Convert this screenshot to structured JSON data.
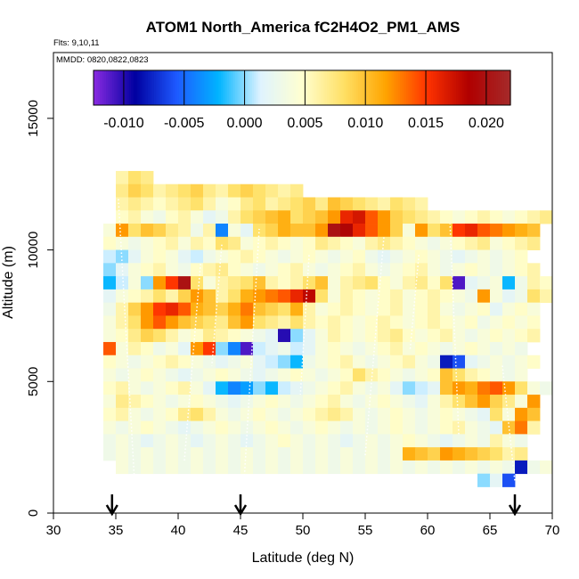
{
  "chart_data": {
    "type": "heatmap",
    "title": "ATOM1 North_America fC2H4O2_PM1_AMS",
    "flights_label": "Flts: 9,10,11",
    "mmdd_label": "MMDD: 0820,0822,0823",
    "xlabel": "Latitude (deg N)",
    "ylabel": "Altitude (m)",
    "xlim": [
      30,
      70
    ],
    "ylim": [
      0,
      17500
    ],
    "x_ticks": [
      30,
      35,
      40,
      45,
      50,
      55,
      60,
      65,
      70
    ],
    "x_tick_labels": [
      "30",
      "35",
      "40",
      "45",
      "50",
      "55",
      "60",
      "65",
      "70"
    ],
    "y_ticks": [
      0,
      5000,
      10000,
      15000
    ],
    "y_tick_labels": [
      "0",
      "5000",
      "10000",
      "15000"
    ],
    "colorbar": {
      "range": [
        -0.0125,
        0.022
      ],
      "ticks": [
        -0.01,
        -0.005,
        0.0,
        0.005,
        0.01,
        0.015,
        0.02
      ],
      "tick_labels": [
        "-0.010",
        "-0.005",
        "0.000",
        "0.005",
        "0.010",
        "0.015",
        "0.020"
      ],
      "colors": [
        "#8a2be2",
        "#0000a0",
        "#1e5aff",
        "#00b4ff",
        "#dff3ff",
        "#ffffd0",
        "#ffe066",
        "#ffa500",
        "#ff3300",
        "#b00000",
        "#a52a2a"
      ]
    },
    "arrow_latitudes": [
      34.7,
      45.0,
      67.0
    ],
    "grid": {
      "lat_start": 34,
      "lat_step": 1,
      "alt_step": 500,
      "rows": [
        {
          "alt": 12500,
          "values": [
            0.006,
            0.008,
            0.007
          ]
        },
        {
          "alt": 12000,
          "values": [
            0.007,
            0.009,
            0.008,
            0.006,
            0.007,
            0.008,
            0.009,
            0.007,
            0.006,
            0.008,
            0.009,
            0.008,
            0.007,
            0.006,
            0.007
          ]
        },
        {
          "alt": 11500,
          "values": [
            0.006,
            0.007,
            0.006,
            0.005,
            0.006,
            0.007,
            0.008,
            0.006,
            0.004,
            0.005,
            0.007,
            0.008,
            0.006,
            0.007,
            0.008,
            0.009,
            0.007,
            0.01,
            0.009,
            0.008,
            0.007,
            0.006,
            0.008,
            0.007,
            0.006
          ]
        },
        {
          "alt": 11000,
          "values": [
            0.005,
            0.006,
            0.004,
            0.003,
            0.005,
            0.006,
            0.004,
            0.002,
            0.003,
            0.006,
            0.008,
            0.009,
            0.01,
            0.011,
            0.008,
            0.009,
            0.01,
            0.012,
            0.016,
            0.017,
            0.014,
            0.012,
            0.009,
            0.008,
            0.007,
            0.006,
            0.005,
            0.004,
            0.005,
            0.006,
            0.005,
            0.004,
            0.005,
            0.006,
            0.007
          ]
        },
        {
          "alt": 10500,
          "values": [
            0.004,
            0.012,
            0.008,
            0.01,
            0.009,
            0.007,
            0.006,
            0.003,
            0.006,
            -0.004,
            0.004,
            0.002,
            0.008,
            0.009,
            0.011,
            0.01,
            0.01,
            0.012,
            0.02,
            0.019,
            0.016,
            0.014,
            0.012,
            0.009,
            0.004,
            0.012,
            0.008,
            0.01,
            0.015,
            0.016,
            0.014,
            0.013,
            0.012,
            0.011,
            0.01
          ]
        },
        {
          "alt": 10000,
          "values": [
            0.005,
            0.004,
            0.003,
            0.004,
            0.005,
            0.006,
            0.004,
            0.006,
            0.005,
            0.008,
            0.007,
            0.004,
            0.005,
            0.006,
            0.005,
            0.004,
            0.005,
            0.007,
            0.006,
            0.005,
            0.004,
            0.006,
            0.007,
            0.006,
            0.005,
            0.004,
            0.003,
            0.004,
            0.005,
            0.006,
            0.007,
            0.004,
            0.005,
            0.006,
            0.007
          ]
        },
        {
          "alt": 9500,
          "values": [
            0.001,
            0.0,
            0.002,
            0.004,
            0.005,
            0.004,
            0.002,
            0.001,
            0.003,
            0.004,
            0.005,
            0.006,
            0.005,
            0.004,
            0.003,
            0.004,
            0.005,
            0.004,
            0.003,
            0.004,
            0.005,
            0.003,
            0.002,
            0.003,
            0.004,
            0.005,
            0.004,
            0.003,
            0.002,
            0.003,
            0.004,
            0.003,
            0.004,
            0.005
          ]
        },
        {
          "alt": 9000,
          "values": [
            0.0,
            0.002,
            0.004,
            0.005,
            0.006,
            0.004,
            0.003,
            0.005,
            0.006,
            0.007,
            0.005,
            0.004,
            0.003,
            0.004,
            0.005,
            0.006,
            0.004,
            0.003,
            0.004,
            0.005,
            0.006,
            0.004,
            0.003,
            0.004,
            0.005,
            0.006,
            0.004,
            0.003,
            0.004,
            0.005,
            0.004,
            0.003,
            0.004,
            0.005,
            0.006
          ]
        },
        {
          "alt": 8500,
          "values": [
            -0.002,
            0.001,
            0.004,
            0.0,
            0.012,
            0.015,
            0.02,
            0.008,
            0.004,
            0.006,
            0.007,
            0.008,
            0.01,
            0.006,
            0.005,
            0.006,
            0.008,
            0.01,
            0.004,
            0.006,
            0.007,
            0.008,
            0.005,
            0.004,
            0.006,
            0.007,
            0.005,
            0.008,
            -0.011,
            0.002,
            0.003,
            0.004,
            -0.002,
            0.003,
            0.006,
            0.005
          ]
        },
        {
          "alt": 8000,
          "values": [
            0.002,
            0.004,
            0.005,
            0.006,
            0.008,
            0.006,
            0.009,
            0.012,
            0.01,
            0.006,
            0.008,
            0.011,
            0.012,
            0.013,
            0.014,
            0.016,
            0.018,
            0.008,
            0.004,
            0.006,
            0.005,
            0.004,
            0.005,
            0.006,
            0.004,
            0.005,
            0.006,
            0.005,
            0.004,
            0.003,
            0.012,
            0.004,
            0.002,
            0.003,
            0.008,
            0.006
          ]
        },
        {
          "alt": 7500,
          "values": [
            0.003,
            0.006,
            0.009,
            0.012,
            0.015,
            0.016,
            0.014,
            0.011,
            0.01,
            0.009,
            0.011,
            0.013,
            0.01,
            0.009,
            0.008,
            0.011,
            0.006,
            0.004,
            0.005,
            0.006,
            0.005,
            0.004,
            0.005,
            0.006,
            0.004,
            0.005,
            0.006,
            0.004,
            0.003,
            0.004,
            0.005,
            0.002,
            0.004,
            0.005,
            0.004
          ]
        },
        {
          "alt": 7000,
          "values": [
            0.004,
            0.006,
            0.008,
            0.012,
            0.014,
            0.012,
            0.01,
            0.009,
            0.008,
            0.007,
            0.01,
            0.012,
            0.008,
            0.007,
            0.006,
            0.008,
            0.006,
            0.005,
            0.006,
            0.005,
            0.004,
            0.005,
            0.006,
            0.005,
            0.004,
            0.005,
            0.006,
            0.005,
            0.004,
            0.005,
            0.003,
            0.004,
            0.005,
            0.004,
            0.005
          ]
        },
        {
          "alt": 6500,
          "values": [
            0.004,
            0.005,
            0.007,
            0.009,
            0.008,
            0.006,
            0.004,
            0.005,
            0.007,
            0.006,
            0.005,
            0.004,
            0.003,
            0.002,
            -0.01,
            0.0,
            0.002,
            0.004,
            0.006,
            0.005,
            0.004,
            0.005,
            0.006,
            0.007,
            0.005,
            0.004,
            0.005,
            0.006,
            0.004,
            0.003,
            0.004,
            0.005,
            0.004,
            0.005,
            0.006
          ]
        },
        {
          "alt": 6000,
          "values": [
            0.014,
            0.004,
            0.006,
            0.005,
            0.003,
            0.004,
            0.002,
            0.012,
            0.015,
            0.0,
            -0.004,
            -0.011,
            0.001,
            0.002,
            0.003,
            0.001,
            0.002,
            0.004,
            0.005,
            0.004,
            0.003,
            0.004,
            0.005,
            0.006,
            0.004,
            0.005,
            0.004,
            0.003,
            0.004,
            0.005,
            0.004,
            0.003,
            0.004,
            0.003
          ]
        },
        {
          "alt": 5500,
          "values": [
            0.005,
            0.004,
            0.003,
            0.004,
            0.005,
            0.006,
            0.005,
            0.004,
            0.003,
            0.002,
            0.003,
            0.004,
            0.002,
            0.001,
            0.0,
            -0.002,
            0.003,
            0.004,
            0.005,
            0.006,
            0.004,
            0.003,
            0.004,
            0.005,
            0.006,
            0.004,
            0.003,
            -0.008,
            -0.006,
            0.002,
            0.003,
            0.004,
            0.003,
            0.004,
            0.005
          ]
        },
        {
          "alt": 5000,
          "values": [
            0.004,
            0.003,
            0.004,
            0.005,
            0.004,
            0.003,
            0.002,
            0.003,
            0.004,
            0.005,
            0.004,
            0.003,
            0.002,
            0.003,
            0.004,
            0.005,
            0.004,
            0.003,
            0.004,
            0.005,
            0.008,
            0.006,
            0.005,
            0.004,
            0.003,
            0.004,
            0.005,
            0.01,
            0.008,
            0.006,
            0.005,
            0.004,
            0.003,
            0.004
          ]
        },
        {
          "alt": 4500,
          "values": [
            0.005,
            0.006,
            0.004,
            0.003,
            0.004,
            0.005,
            0.006,
            0.004,
            0.002,
            -0.002,
            -0.004,
            -0.003,
            0.0,
            -0.002,
            0.001,
            0.002,
            0.003,
            0.004,
            0.005,
            0.006,
            0.004,
            0.003,
            0.004,
            0.002,
            0.0,
            0.001,
            0.002,
            0.01,
            0.012,
            0.011,
            0.013,
            0.014,
            0.012,
            0.008,
            0.004,
            0.003
          ]
        },
        {
          "alt": 4000,
          "values": [
            0.004,
            0.007,
            0.006,
            0.005,
            0.004,
            0.003,
            0.004,
            0.005,
            0.004,
            0.003,
            0.002,
            0.003,
            0.004,
            0.005,
            0.004,
            0.003,
            0.004,
            0.005,
            0.006,
            0.004,
            0.003,
            0.004,
            0.005,
            0.004,
            0.003,
            0.002,
            0.004,
            0.006,
            0.008,
            0.01,
            0.012,
            0.009,
            0.007,
            0.004,
            0.012
          ]
        },
        {
          "alt": 3500,
          "values": [
            0.005,
            0.006,
            0.004,
            0.003,
            0.004,
            0.005,
            0.007,
            0.008,
            0.006,
            0.004,
            0.003,
            0.004,
            0.005,
            0.004,
            0.003,
            0.004,
            0.005,
            0.006,
            0.007,
            0.006,
            0.004,
            0.003,
            0.004,
            0.005,
            0.004,
            0.003,
            0.004,
            0.005,
            0.004,
            0.003,
            0.002,
            0.008,
            0.004,
            0.012,
            0.01
          ]
        },
        {
          "alt": 3000,
          "values": [
            0.004,
            0.003,
            0.004,
            0.005,
            0.004,
            0.003,
            0.002,
            0.003,
            0.004,
            0.005,
            0.004,
            0.003,
            0.004,
            0.005,
            0.004,
            0.003,
            0.004,
            0.005,
            0.004,
            0.003,
            0.004,
            0.003,
            0.004,
            0.005,
            0.004,
            0.003,
            0.004,
            0.005,
            0.006,
            0.004,
            0.003,
            0.002,
            0.01,
            0.013,
            0.006
          ]
        },
        {
          "alt": 2500,
          "values": [
            0.003,
            0.004,
            0.003,
            0.002,
            0.003,
            0.004,
            0.003,
            0.002,
            0.003,
            0.004,
            0.003,
            0.002,
            0.003,
            0.004,
            0.005,
            0.004,
            0.003,
            0.004,
            0.003,
            0.002,
            0.003,
            0.004,
            0.003,
            0.004,
            0.005,
            0.004,
            0.003,
            0.002,
            0.003,
            0.004,
            0.003,
            0.006,
            0.004,
            0.003
          ]
        },
        {
          "alt": 2000,
          "values": [
            0.003,
            0.004,
            0.003,
            0.004,
            0.003,
            0.004,
            0.003,
            0.004,
            0.003,
            0.004,
            0.003,
            0.004,
            0.003,
            0.004,
            0.003,
            0.004,
            0.003,
            0.004,
            0.003,
            0.004,
            0.003,
            0.004,
            0.003,
            0.004,
            0.011,
            0.01,
            0.009,
            0.012,
            0.011,
            0.01,
            0.009,
            0.008,
            0.006,
            0.007
          ]
        },
        {
          "alt": 1500,
          "values": [
            0.004,
            0.003,
            0.004,
            0.003,
            0.004,
            0.003,
            0.004,
            0.003,
            0.004,
            0.003,
            0.004,
            0.003,
            0.004,
            0.003,
            0.004,
            0.003,
            0.004,
            0.003,
            0.004,
            0.003,
            0.004,
            0.003,
            0.004,
            0.003,
            0.004,
            0.003,
            0.004,
            0.003,
            0.004,
            0.003,
            0.004,
            0.003,
            -0.008,
            0.003,
            0.004
          ]
        },
        {
          "alt": 1000,
          "values": [
            0.0,
            0.002,
            -0.006
          ]
        }
      ]
    },
    "grid_row_lat_starts": [
      35,
      35,
      35,
      35,
      34,
      34,
      34,
      34,
      34,
      34,
      34,
      34,
      34,
      34,
      34,
      34,
      34,
      34,
      34,
      34,
      34,
      34,
      35,
      64
    ]
  }
}
